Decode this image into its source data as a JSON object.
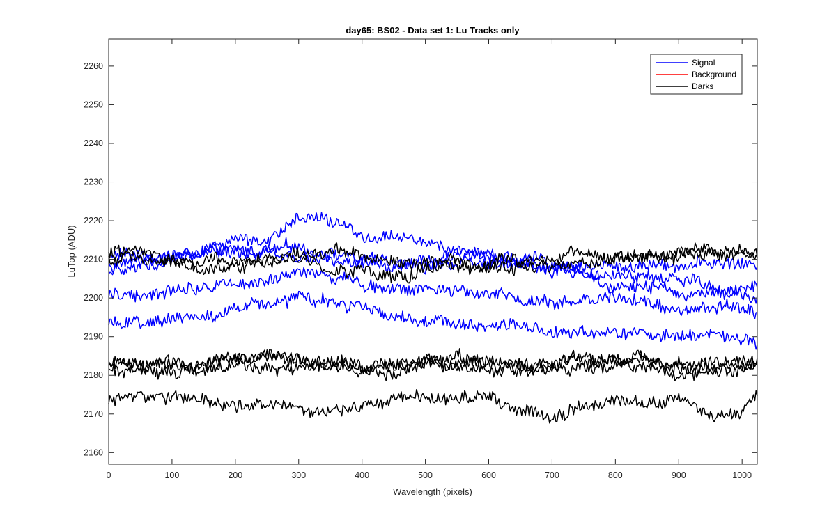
{
  "chart_data": {
    "type": "line",
    "title": "day65: BS02 - Data set 1: Lu Tracks only",
    "xlabel": "Wavelength (pixels)",
    "ylabel": "LuTop (ADU)",
    "xlim": [
      0,
      1024
    ],
    "ylim": [
      2157,
      2267
    ],
    "xticks": [
      0,
      100,
      200,
      300,
      400,
      500,
      600,
      700,
      800,
      900,
      1000
    ],
    "yticks": [
      2160,
      2170,
      2180,
      2190,
      2200,
      2210,
      2220,
      2230,
      2240,
      2250,
      2260
    ],
    "grid": false,
    "legend": {
      "location": "top-right",
      "entries": [
        {
          "name": "Signal",
          "color": "#0000ff"
        },
        {
          "name": "Background",
          "color": "#ff0000"
        },
        {
          "name": "Darks",
          "color": "#000000"
        }
      ]
    },
    "noise_amplitude": 1.4,
    "series": [
      {
        "name": "Signal",
        "color": "#0000ff",
        "x": [
          0,
          100,
          200,
          250,
          300,
          350,
          400,
          450,
          500,
          600,
          700,
          800,
          900,
          1000,
          1024
        ],
        "y": [
          2211,
          2211,
          2212,
          2212,
          2213,
          2212,
          2210,
          2210,
          2210,
          2211,
          2209,
          2208,
          2209,
          2209,
          2208
        ]
      },
      {
        "name": "Signal",
        "color": "#0000ff",
        "x": [
          0,
          100,
          200,
          250,
          300,
          350,
          400,
          450,
          500,
          600,
          700,
          800,
          900,
          1000,
          1024
        ],
        "y": [
          2206,
          2210,
          2215,
          2215,
          2220,
          2220,
          2216,
          2216,
          2214,
          2211,
          2207,
          2204,
          2201,
          2202,
          2203
        ]
      },
      {
        "name": "Signal",
        "color": "#0000ff",
        "x": [
          0,
          100,
          200,
          250,
          300,
          350,
          400,
          450,
          500,
          600,
          700,
          800,
          900,
          1000,
          1024
        ],
        "y": [
          2208,
          2211,
          2212,
          2211,
          2210,
          2210,
          2209,
          2208,
          2208,
          2209,
          2208,
          2206,
          2205,
          2201,
          2200
        ]
      },
      {
        "name": "Signal",
        "color": "#0000ff",
        "x": [
          0,
          100,
          200,
          250,
          300,
          350,
          400,
          450,
          500,
          600,
          700,
          800,
          900,
          1000,
          1024
        ],
        "y": [
          2201,
          2202,
          2205,
          2205,
          2206,
          2206,
          2204,
          2202,
          2203,
          2201,
          2199,
          2201,
          2197,
          2197,
          2196
        ]
      },
      {
        "name": "Signal",
        "color": "#0000ff",
        "x": [
          0,
          100,
          200,
          250,
          300,
          350,
          400,
          450,
          500,
          600,
          700,
          800,
          900,
          1000,
          1024
        ],
        "y": [
          2193,
          2194,
          2197,
          2198,
          2200,
          2199,
          2197,
          2195,
          2195,
          2193,
          2191,
          2190,
          2190,
          2190,
          2188
        ]
      },
      {
        "name": "Darks",
        "color": "#000000",
        "x": [
          0,
          100,
          200,
          250,
          300,
          350,
          400,
          450,
          500,
          600,
          700,
          800,
          900,
          1000,
          1024
        ],
        "y": [
          2212,
          2210,
          2210,
          2210,
          2211,
          2212,
          2211,
          2210,
          2209,
          2209,
          2211,
          2211,
          2211,
          2211,
          2211
        ]
      },
      {
        "name": "Darks",
        "color": "#000000",
        "x": [
          0,
          100,
          200,
          250,
          300,
          350,
          400,
          450,
          500,
          600,
          700,
          800,
          900,
          1000,
          1024
        ],
        "y": [
          2210,
          2209,
          2208,
          2209,
          2210,
          2208,
          2207,
          2205,
          2207,
          2207,
          2208,
          2210,
          2212,
          2212,
          2211
        ]
      },
      {
        "name": "Darks",
        "color": "#000000",
        "x": [
          0,
          100,
          200,
          250,
          300,
          350,
          400,
          450,
          500,
          600,
          700,
          800,
          900,
          1000,
          1024
        ],
        "y": [
          2184,
          2183,
          2184,
          2185,
          2184,
          2183,
          2183,
          2182,
          2184,
          2184,
          2183,
          2184,
          2183,
          2183,
          2183
        ]
      },
      {
        "name": "Darks",
        "color": "#000000",
        "x": [
          0,
          100,
          200,
          250,
          300,
          350,
          400,
          450,
          500,
          600,
          700,
          800,
          900,
          1000,
          1024
        ],
        "y": [
          2182,
          2181,
          2183,
          2183,
          2182,
          2182,
          2181,
          2181,
          2183,
          2181,
          2181,
          2182,
          2181,
          2182,
          2181
        ]
      },
      {
        "name": "Darks",
        "color": "#000000",
        "x": [
          0,
          100,
          200,
          250,
          300,
          350,
          400,
          450,
          500,
          600,
          700,
          800,
          900,
          1000,
          1024
        ],
        "y": [
          2183,
          2182,
          2184,
          2185,
          2184,
          2183,
          2183,
          2182,
          2183,
          2182,
          2183,
          2185,
          2182,
          2183,
          2183
        ]
      },
      {
        "name": "Darks",
        "color": "#000000",
        "x": [
          0,
          100,
          200,
          250,
          300,
          310,
          350,
          400,
          450,
          500,
          600,
          700,
          800,
          900,
          950,
          1000,
          1024
        ],
        "y": [
          2174,
          2174,
          2173,
          2173,
          2172,
          2169,
          2171,
          2172,
          2175,
          2174,
          2174,
          2169,
          2174,
          2174,
          2170,
          2170,
          2175
        ]
      }
    ]
  }
}
